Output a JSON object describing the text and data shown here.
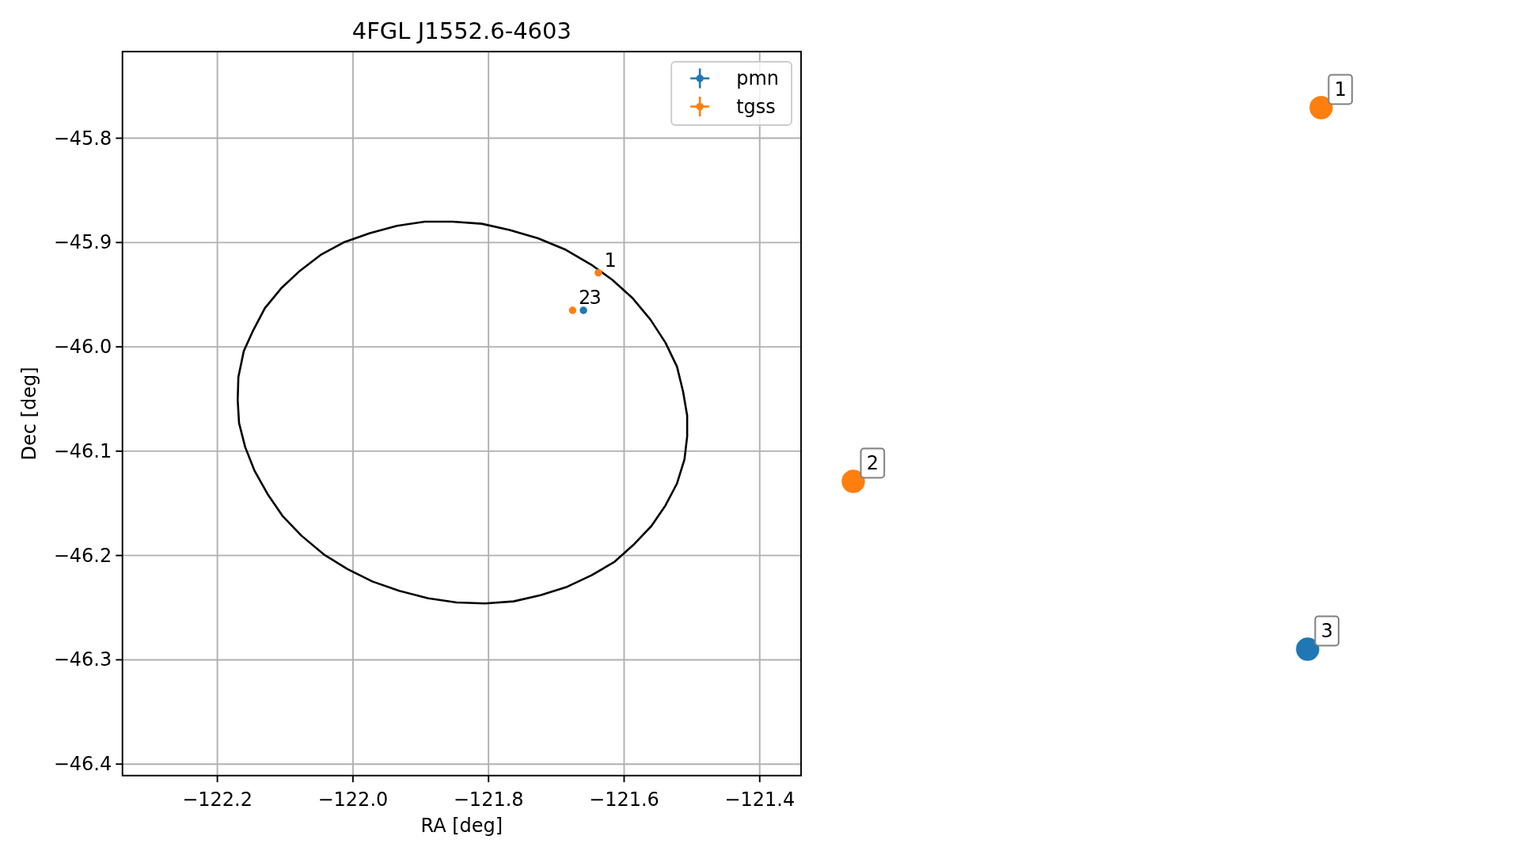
{
  "chart_data": [
    {
      "type": "scatter",
      "title": "4FGL J1552.6-4603",
      "xlabel": "RA [deg]",
      "ylabel": "Dec [deg]",
      "xlim": [
        -122.34,
        -121.339
      ],
      "ylim": [
        -46.411,
        -45.717
      ],
      "xticks": [
        {
          "value": -122.2,
          "label": "−122.2"
        },
        {
          "value": -122.0,
          "label": "−122.0"
        },
        {
          "value": -121.8,
          "label": "−121.8"
        },
        {
          "value": -121.6,
          "label": "−121.6"
        },
        {
          "value": -121.4,
          "label": "−121.4"
        }
      ],
      "yticks": [
        {
          "value": -45.8,
          "label": "−45.8"
        },
        {
          "value": -45.9,
          "label": "−45.9"
        },
        {
          "value": -46.0,
          "label": "−46.0"
        },
        {
          "value": -46.1,
          "label": "−46.1"
        },
        {
          "value": -46.2,
          "label": "−46.2"
        },
        {
          "value": -46.3,
          "label": "−46.3"
        },
        {
          "value": -46.4,
          "label": "−46.4"
        }
      ],
      "grid": true,
      "legend": "top right",
      "marker": "circle",
      "series": [
        {
          "name": "pmn",
          "color": "#1f77b4",
          "x": [
            -121.66
          ],
          "values": [
            -45.965
          ]
        },
        {
          "name": "tgss",
          "color": "#ff7f0e",
          "x": [
            -121.638,
            -121.676
          ],
          "values": [
            -45.929,
            -45.965
          ]
        }
      ],
      "annotations": [
        {
          "text": "1",
          "x": -121.638,
          "y": -45.929
        },
        {
          "text": "2",
          "x": -121.676,
          "y": -45.965
        },
        {
          "text": "3",
          "x": -121.66,
          "y": -45.965
        }
      ]
    },
    {
      "type": "other",
      "categories": [
        "1",
        "2",
        "3"
      ],
      "colors": [
        "#ff7f0e",
        "#ff7f0e",
        "#1f77b4"
      ]
    }
  ]
}
